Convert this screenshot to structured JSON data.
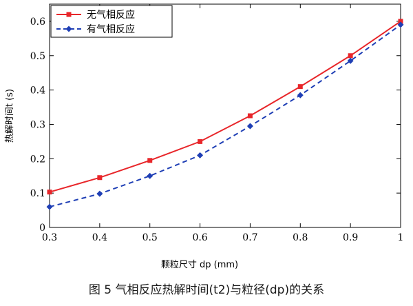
{
  "chart_data": {
    "type": "line",
    "xlabel": "颗粒尺寸 dp (mm)",
    "ylabel": "热解时间t (s)",
    "xlim": [
      0.3,
      1.0
    ],
    "ylim": [
      0,
      0.65
    ],
    "x_ticks": [
      "0.3",
      "0.4",
      "0.5",
      "0.6",
      "0.7",
      "0.8",
      "0.9",
      "1"
    ],
    "y_ticks": [
      "0",
      "0.1",
      "0.2",
      "0.3",
      "0.4",
      "0.5",
      "0.6"
    ],
    "x": [
      0.3,
      0.4,
      0.5,
      0.6,
      0.7,
      0.8,
      0.9,
      1.0
    ],
    "series": [
      {
        "name": "无气相反应",
        "values": [
          0.103,
          0.145,
          0.195,
          0.25,
          0.325,
          0.41,
          0.5,
          0.6
        ],
        "color": "#e8262a",
        "line": "solid",
        "marker": "square"
      },
      {
        "name": "有气相反应",
        "values": [
          0.06,
          0.098,
          0.15,
          0.21,
          0.295,
          0.385,
          0.485,
          0.59
        ],
        "color": "#1f3fb5",
        "line": "dashed",
        "marker": "diamond"
      }
    ],
    "grid": false,
    "legend_position": "top-left"
  },
  "caption": "图 5 气相反应热解时间(t2)与粒径(dp)的关系"
}
